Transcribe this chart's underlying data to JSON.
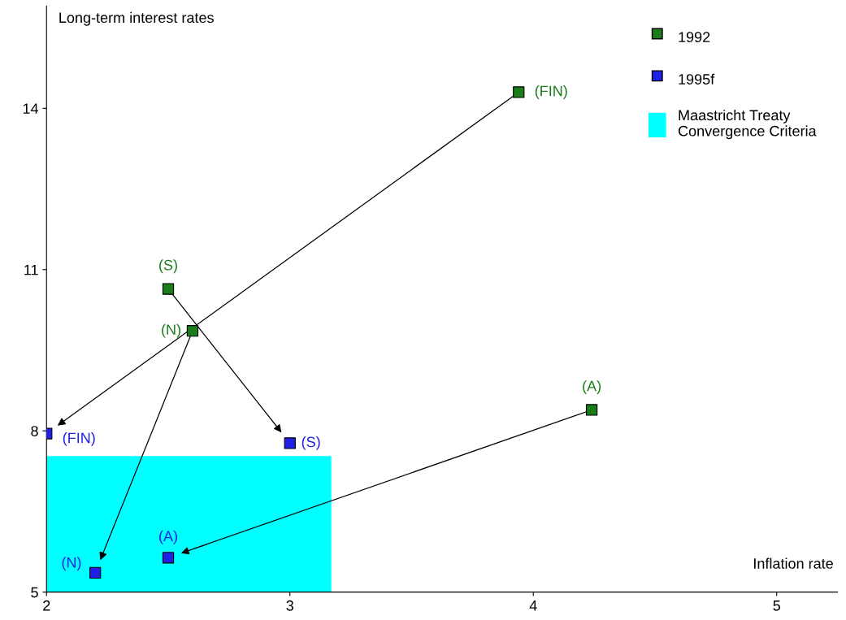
{
  "chart_data": {
    "type": "scatter",
    "xlabel": "Inflation rate",
    "ylabel": "Long-term interest rates",
    "xlim": [
      2,
      5.25
    ],
    "ylim": [
      5,
      15.9
    ],
    "xticks": [
      2,
      3,
      4,
      5
    ],
    "yticks": [
      5,
      8,
      11,
      14
    ],
    "grid": false,
    "legend": "top right",
    "series": [
      {
        "name": "1992",
        "marker": "square",
        "color": "#1a7d1a",
        "x": [
          3.94,
          2.5,
          2.6,
          4.24
        ],
        "values": [
          14.3,
          10.64,
          9.86,
          8.39
        ],
        "value_labels": [
          "(FIN)",
          "(S)",
          "(N)",
          "(A)"
        ]
      },
      {
        "name": "1995f",
        "marker": "square",
        "color": "#1f1fe6",
        "x": [
          2.0,
          3.0,
          2.2,
          2.5
        ],
        "values": [
          7.95,
          7.77,
          5.36,
          5.64
        ],
        "value_labels": [
          "(FIN)",
          "(S)",
          "(N)",
          "(A)"
        ]
      },
      {
        "type": "area",
        "marker": "none",
        "name": "Maastricht Treaty\nConvergence Criteria",
        "color": "#00ffff",
        "x": [
          2,
          3.17
        ],
        "values": [
          7.53,
          7.53
        ]
      }
    ]
  }
}
